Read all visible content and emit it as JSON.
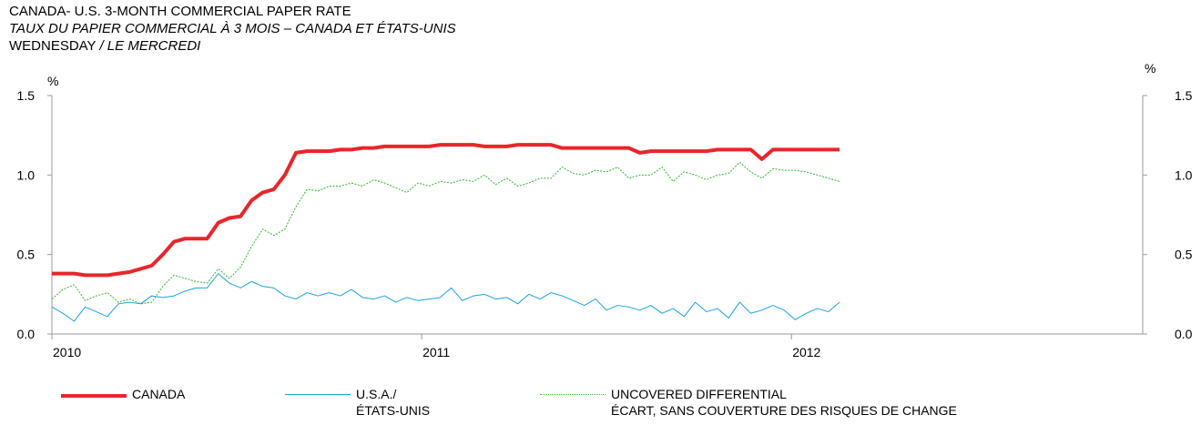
{
  "chart_data": {
    "type": "line",
    "title": "CANADA- U.S. 3-MONTH COMMERCIAL PAPER RATE",
    "subtitle": "TAUX DU PAPIER COMMERCIAL À 3 MOIS – CANADA ET ÉTATS-UNIS",
    "frequency": "WEDNESDAY",
    "frequency_fr": "/ LE MERCREDI",
    "ylabel": "%",
    "y2label": "%",
    "xlim": [
      2010,
      2012.95
    ],
    "xticks": [
      2010,
      2011,
      2012
    ],
    "ylim": [
      0,
      1.5
    ],
    "yticks": [
      {
        "value": 0,
        "label": "0.0"
      },
      0.5,
      {
        "value": 1,
        "label": "1.0"
      },
      1.5
    ],
    "x": [
      2010,
      2010.03,
      2010.06,
      2010.09,
      2010.12,
      2010.15,
      2010.18,
      2010.21,
      2010.24,
      2010.27,
      2010.3,
      2010.33,
      2010.36,
      2010.39,
      2010.42,
      2010.45,
      2010.48,
      2010.51,
      2010.54,
      2010.57,
      2010.6,
      2010.63,
      2010.66,
      2010.69,
      2010.72,
      2010.75,
      2010.78,
      2010.81,
      2010.84,
      2010.87,
      2010.9,
      2010.93,
      2010.96,
      2010.99,
      2011.02,
      2011.05,
      2011.08,
      2011.11,
      2011.14,
      2011.17,
      2011.2,
      2011.23,
      2011.26,
      2011.29,
      2011.32,
      2011.35,
      2011.38,
      2011.41,
      2011.44,
      2011.47,
      2011.5,
      2011.53,
      2011.56,
      2011.59,
      2011.62,
      2011.65,
      2011.68,
      2011.71,
      2011.74,
      2011.77,
      2011.8,
      2011.83,
      2011.86,
      2011.89,
      2011.92,
      2011.95,
      2011.98,
      2012.01,
      2012.04,
      2012.07,
      2012.1,
      2012.13
    ],
    "series": [
      {
        "name": "CANADA",
        "color": "#e8262b",
        "line_width": 4,
        "line_style": "solid",
        "values": [
          0.38,
          0.38,
          0.38,
          0.37,
          0.37,
          0.37,
          0.38,
          0.39,
          0.41,
          0.43,
          0.5,
          0.58,
          0.6,
          0.6,
          0.6,
          0.7,
          0.73,
          0.74,
          0.84,
          0.89,
          0.91,
          1.0,
          1.14,
          1.15,
          1.15,
          1.15,
          1.16,
          1.16,
          1.17,
          1.17,
          1.18,
          1.18,
          1.18,
          1.18,
          1.18,
          1.19,
          1.19,
          1.19,
          1.19,
          1.18,
          1.18,
          1.18,
          1.19,
          1.19,
          1.19,
          1.19,
          1.17,
          1.17,
          1.17,
          1.17,
          1.17,
          1.17,
          1.17,
          1.14,
          1.15,
          1.15,
          1.15,
          1.15,
          1.15,
          1.15,
          1.16,
          1.16,
          1.16,
          1.16,
          1.1,
          1.16,
          1.16,
          1.16,
          1.16,
          1.16,
          1.16,
          1.16
        ]
      },
      {
        "name": "U.S.A./\nÉTATS-UNIS",
        "color": "#1ba1e2",
        "line_width": 1,
        "line_style": "solid",
        "values": [
          0.17,
          0.13,
          0.08,
          0.17,
          0.14,
          0.11,
          0.19,
          0.2,
          0.19,
          0.24,
          0.23,
          0.24,
          0.27,
          0.29,
          0.29,
          0.38,
          0.32,
          0.29,
          0.33,
          0.3,
          0.29,
          0.24,
          0.22,
          0.26,
          0.24,
          0.26,
          0.24,
          0.28,
          0.23,
          0.22,
          0.24,
          0.2,
          0.23,
          0.21,
          0.22,
          0.23,
          0.29,
          0.21,
          0.24,
          0.25,
          0.22,
          0.23,
          0.19,
          0.25,
          0.22,
          0.26,
          0.24,
          0.21,
          0.18,
          0.22,
          0.15,
          0.18,
          0.17,
          0.15,
          0.18,
          0.13,
          0.16,
          0.11,
          0.2,
          0.14,
          0.16,
          0.1,
          0.2,
          0.13,
          0.15,
          0.18,
          0.15,
          0.09,
          0.13,
          0.16,
          0.14,
          0.2
        ]
      },
      {
        "name": "UNCOVERED DIFFERENTIAL\nÉCART, SANS COUVERTURE DES RISQUES DE CHANGE",
        "color": "#2db82d",
        "line_width": 1,
        "line_style": "dotted",
        "values": [
          0.22,
          0.28,
          0.31,
          0.21,
          0.24,
          0.26,
          0.2,
          0.22,
          0.19,
          0.2,
          0.3,
          0.37,
          0.35,
          0.33,
          0.32,
          0.41,
          0.35,
          0.42,
          0.55,
          0.66,
          0.62,
          0.66,
          0.8,
          0.91,
          0.9,
          0.93,
          0.93,
          0.95,
          0.93,
          0.97,
          0.95,
          0.92,
          0.89,
          0.95,
          0.93,
          0.96,
          0.95,
          0.97,
          0.96,
          1.0,
          0.94,
          0.98,
          0.93,
          0.95,
          0.98,
          0.98,
          1.05,
          1.01,
          1.0,
          1.03,
          1.02,
          1.05,
          0.98,
          1.0,
          1.0,
          1.05,
          0.96,
          1.02,
          1.0,
          0.97,
          1.0,
          1.01,
          1.08,
          1.02,
          0.98,
          1.04,
          1.03,
          1.03,
          1.02,
          1.0,
          0.98,
          0.96
        ]
      }
    ]
  }
}
